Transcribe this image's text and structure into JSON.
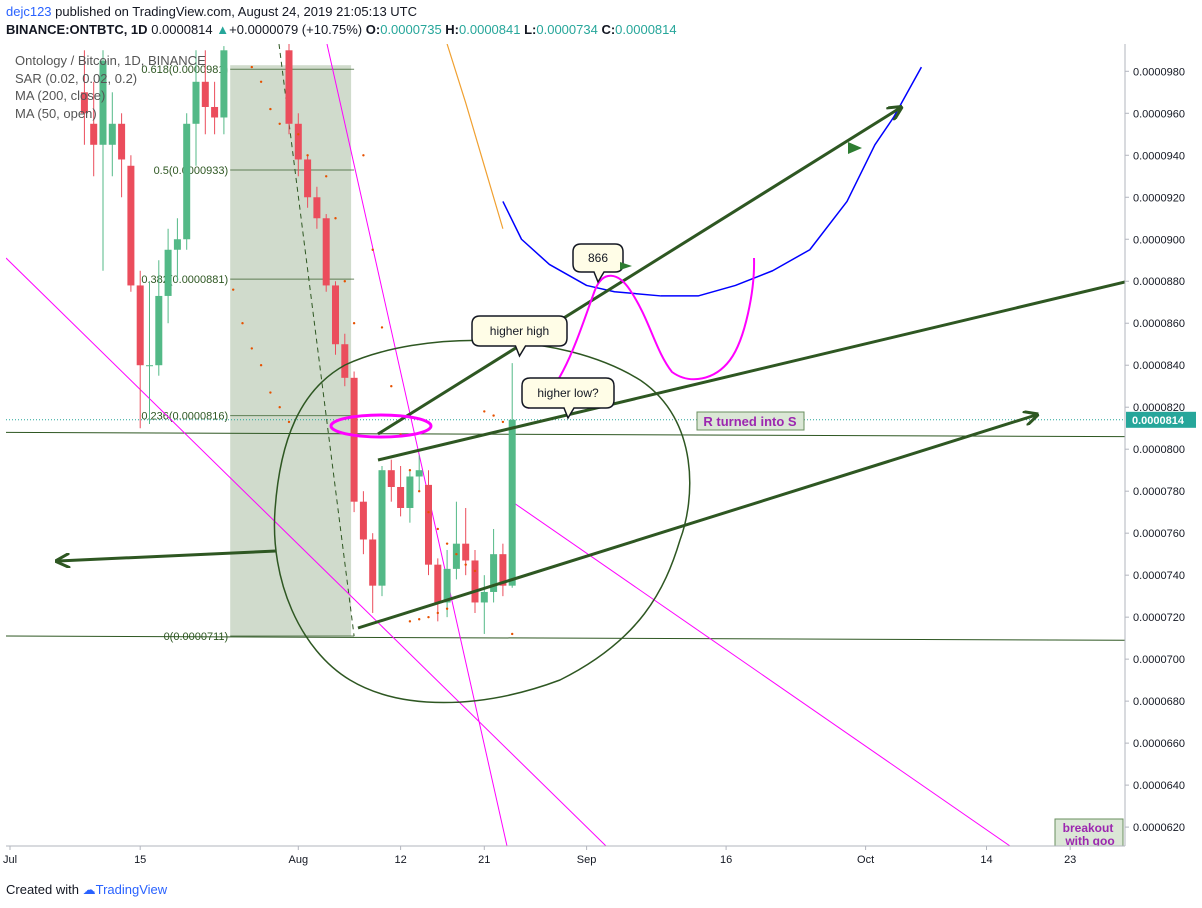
{
  "header": {
    "user": "dejc123",
    "published": "published on TradingView.com, August 24, 2019 21:05:13 UTC"
  },
  "symbol_bar": {
    "symbol": "BINANCE:ONTBTC, 1D",
    "last": "0.0000814",
    "change": "+0.0000079 (+10.75%)",
    "o_label": "O:",
    "o": "0.0000735",
    "h_label": "H:",
    "h": "0.0000841",
    "l_label": "L:",
    "l": "0.0000734",
    "c_label": "C:",
    "c": "0.0000814"
  },
  "legend": {
    "title": "Ontology / Bitcoin, 1D, BINANCE",
    "sar": "SAR (0.02, 0.02, 0.2)",
    "ma200": "MA (200, close)",
    "ma50": "MA (50, open)"
  },
  "footer": {
    "created": "Created with",
    "brand": "TradingView"
  },
  "colors": {
    "up": "#53b987",
    "down": "#eb4d5c",
    "fib_zone": "#c8d5c3",
    "drawing_green": "#2e5722",
    "magenta": "#ff00ff",
    "ma200": "#0000ff",
    "ma50": "#f0a030",
    "sar": "#e65100",
    "price_label": "#26a69a"
  },
  "chart_data": {
    "type": "candlestick",
    "ylim": [
      6.11e-05,
      9.93e-05
    ],
    "y_ticks": [
      "0.0000620",
      "0.0000640",
      "0.0000660",
      "0.0000680",
      "0.0000700",
      "0.0000720",
      "0.0000740",
      "0.0000760",
      "0.0000780",
      "0.0000800",
      "0.0000820",
      "0.0000840",
      "0.0000860",
      "0.0000880",
      "0.0000900",
      "0.0000920",
      "0.0000940",
      "0.0000960",
      "0.0000980"
    ],
    "x_ticks": [
      {
        "label": "Jul",
        "day": 0
      },
      {
        "label": "15",
        "day": 14
      },
      {
        "label": "Aug",
        "day": 31
      },
      {
        "label": "12",
        "day": 42
      },
      {
        "label": "21",
        "day": 51
      },
      {
        "label": "Sep",
        "day": 62
      },
      {
        "label": "16",
        "day": 77
      },
      {
        "label": "Oct",
        "day": 92
      },
      {
        "label": "14",
        "day": 105
      },
      {
        "label": "23",
        "day": 114
      }
    ],
    "current_price": "0.0000814",
    "candles": [
      {
        "day": 8,
        "o": 9.7e-05,
        "h": 9.9e-05,
        "l": 9.45e-05,
        "c": 9.6e-05
      },
      {
        "day": 9,
        "o": 9.55e-05,
        "h": 9.75e-05,
        "l": 9.3e-05,
        "c": 9.45e-05
      },
      {
        "day": 10,
        "o": 9.45e-05,
        "h": 9.9e-05,
        "l": 8.85e-05,
        "c": 9.85e-05
      },
      {
        "day": 11,
        "o": 9.45e-05,
        "h": 9.7e-05,
        "l": 9.3e-05,
        "c": 9.55e-05
      },
      {
        "day": 12,
        "o": 9.55e-05,
        "h": 9.6e-05,
        "l": 9.2e-05,
        "c": 9.38e-05
      },
      {
        "day": 13,
        "o": 9.35e-05,
        "h": 9.4e-05,
        "l": 8.75e-05,
        "c": 8.78e-05
      },
      {
        "day": 14,
        "o": 8.78e-05,
        "h": 8.85e-05,
        "l": 8.1e-05,
        "c": 8.4e-05
      },
      {
        "day": 15,
        "o": 8.4e-05,
        "h": 8.8e-05,
        "l": 8.12e-05,
        "c": 8.4e-05
      },
      {
        "day": 16,
        "o": 8.4e-05,
        "h": 8.9e-05,
        "l": 8.35e-05,
        "c": 8.73e-05
      },
      {
        "day": 17,
        "o": 8.73e-05,
        "h": 9.05e-05,
        "l": 8.6e-05,
        "c": 8.95e-05
      },
      {
        "day": 18,
        "o": 8.95e-05,
        "h": 9.1e-05,
        "l": 8.8e-05,
        "c": 9e-05
      },
      {
        "day": 19,
        "o": 9e-05,
        "h": 9.6e-05,
        "l": 8.95e-05,
        "c": 9.55e-05
      },
      {
        "day": 20,
        "o": 9.55e-05,
        "h": 9.9e-05,
        "l": 9.35e-05,
        "c": 9.75e-05
      },
      {
        "day": 21,
        "o": 9.75e-05,
        "h": 9.9e-05,
        "l": 9.5e-05,
        "c": 9.63e-05
      },
      {
        "day": 22,
        "o": 9.63e-05,
        "h": 9.75e-05,
        "l": 9.5e-05,
        "c": 9.58e-05
      },
      {
        "day": 23,
        "o": 9.58e-05,
        "h": 9.92e-05,
        "l": 9.5e-05,
        "c": 9.9e-05
      },
      {
        "day": 30,
        "o": 9.9e-05,
        "h": 9.93e-05,
        "l": 9.5e-05,
        "c": 9.55e-05
      },
      {
        "day": 31,
        "o": 9.55e-05,
        "h": 9.6e-05,
        "l": 9.3e-05,
        "c": 9.38e-05
      },
      {
        "day": 32,
        "o": 9.38e-05,
        "h": 9.4e-05,
        "l": 9.15e-05,
        "c": 9.2e-05
      },
      {
        "day": 33,
        "o": 9.2e-05,
        "h": 9.25e-05,
        "l": 9.05e-05,
        "c": 9.1e-05
      },
      {
        "day": 34,
        "o": 9.1e-05,
        "h": 9.12e-05,
        "l": 8.75e-05,
        "c": 8.78e-05
      },
      {
        "day": 35,
        "o": 8.78e-05,
        "h": 8.8e-05,
        "l": 8.45e-05,
        "c": 8.5e-05
      },
      {
        "day": 36,
        "o": 8.5e-05,
        "h": 8.55e-05,
        "l": 8.3e-05,
        "c": 8.34e-05
      },
      {
        "day": 37,
        "o": 8.34e-05,
        "h": 8.37e-05,
        "l": 7.7e-05,
        "c": 7.75e-05
      },
      {
        "day": 38,
        "o": 7.75e-05,
        "h": 7.8e-05,
        "l": 7.5e-05,
        "c": 7.57e-05
      },
      {
        "day": 39,
        "o": 7.57e-05,
        "h": 7.6e-05,
        "l": 7.22e-05,
        "c": 7.35e-05
      },
      {
        "day": 40,
        "o": 7.35e-05,
        "h": 7.92e-05,
        "l": 7.3e-05,
        "c": 7.9e-05
      },
      {
        "day": 41,
        "o": 7.9e-05,
        "h": 7.95e-05,
        "l": 7.75e-05,
        "c": 7.82e-05
      },
      {
        "day": 42,
        "o": 7.82e-05,
        "h": 7.92e-05,
        "l": 7.68e-05,
        "c": 7.72e-05
      },
      {
        "day": 43,
        "o": 7.72e-05,
        "h": 7.9e-05,
        "l": 7.65e-05,
        "c": 7.87e-05
      },
      {
        "day": 44,
        "o": 7.87e-05,
        "h": 7.97e-05,
        "l": 7.8e-05,
        "c": 7.9e-05
      },
      {
        "day": 45,
        "o": 7.83e-05,
        "h": 7.9e-05,
        "l": 7.4e-05,
        "c": 7.45e-05
      },
      {
        "day": 46,
        "o": 7.45e-05,
        "h": 7.48e-05,
        "l": 7.18e-05,
        "c": 7.27e-05
      },
      {
        "day": 47,
        "o": 7.27e-05,
        "h": 7.52e-05,
        "l": 7.2e-05,
        "c": 7.43e-05
      },
      {
        "day": 48,
        "o": 7.43e-05,
        "h": 7.75e-05,
        "l": 7.38e-05,
        "c": 7.55e-05
      },
      {
        "day": 49,
        "o": 7.55e-05,
        "h": 7.72e-05,
        "l": 7.4e-05,
        "c": 7.47e-05
      },
      {
        "day": 50,
        "o": 7.47e-05,
        "h": 7.52e-05,
        "l": 7.22e-05,
        "c": 7.27e-05
      },
      {
        "day": 51,
        "o": 7.27e-05,
        "h": 7.4e-05,
        "l": 7.12e-05,
        "c": 7.32e-05
      },
      {
        "day": 52,
        "o": 7.32e-05,
        "h": 7.62e-05,
        "l": 7.27e-05,
        "c": 7.5e-05
      },
      {
        "day": 53,
        "o": 7.5e-05,
        "h": 7.55e-05,
        "l": 7.3e-05,
        "c": 7.35e-05
      },
      {
        "day": 54,
        "o": 7.35e-05,
        "h": 8.41e-05,
        "l": 7.34e-05,
        "c": 8.14e-05
      }
    ],
    "sar_points": [
      {
        "day": 24,
        "v": 8.76e-05
      },
      {
        "day": 25,
        "v": 8.6e-05
      },
      {
        "day": 26,
        "v": 8.48e-05
      },
      {
        "day": 27,
        "v": 8.4e-05
      },
      {
        "day": 28,
        "v": 8.27e-05
      },
      {
        "day": 29,
        "v": 8.2e-05
      },
      {
        "day": 30,
        "v": 8.13e-05
      },
      {
        "day": 26,
        "v": 9.82e-05
      },
      {
        "day": 27,
        "v": 9.75e-05
      },
      {
        "day": 28,
        "v": 9.62e-05
      },
      {
        "day": 29,
        "v": 9.55e-05
      },
      {
        "day": 31,
        "v": 9.5e-05
      },
      {
        "day": 32,
        "v": 9.4e-05
      },
      {
        "day": 34,
        "v": 9.3e-05
      },
      {
        "day": 35,
        "v": 9.1e-05
      },
      {
        "day": 36,
        "v": 8.8e-05
      },
      {
        "day": 37,
        "v": 8.6e-05
      },
      {
        "day": 38,
        "v": 9.4e-05
      },
      {
        "day": 39,
        "v": 8.95e-05
      },
      {
        "day": 40,
        "v": 8.58e-05
      },
      {
        "day": 41,
        "v": 8.3e-05
      },
      {
        "day": 42,
        "v": 8.07e-05
      },
      {
        "day": 43,
        "v": 7.9e-05
      },
      {
        "day": 44,
        "v": 7.8e-05
      },
      {
        "day": 45,
        "v": 7.7e-05
      },
      {
        "day": 46,
        "v": 7.62e-05
      },
      {
        "day": 47,
        "v": 7.55e-05
      },
      {
        "day": 48,
        "v": 7.5e-05
      },
      {
        "day": 49,
        "v": 7.45e-05
      },
      {
        "day": 50,
        "v": 7.42e-05
      },
      {
        "day": 51,
        "v": 8.18e-05
      },
      {
        "day": 52,
        "v": 8.16e-05
      },
      {
        "day": 53,
        "v": 8.13e-05
      },
      {
        "day": 54,
        "v": 7.12e-05
      },
      {
        "day": 43,
        "v": 7.18e-05
      },
      {
        "day": 44,
        "v": 7.19e-05
      },
      {
        "day": 45,
        "v": 7.2e-05
      },
      {
        "day": 46,
        "v": 7.22e-05
      },
      {
        "day": 47,
        "v": 7.24e-05
      }
    ],
    "ma200": [
      {
        "day": 53,
        "v": 9.18e-05
      },
      {
        "day": 55,
        "v": 9e-05
      },
      {
        "day": 58,
        "v": 8.88e-05
      },
      {
        "day": 62,
        "v": 8.78e-05
      },
      {
        "day": 65,
        "v": 8.75e-05
      },
      {
        "day": 70,
        "v": 8.73e-05
      },
      {
        "day": 74,
        "v": 8.73e-05
      },
      {
        "day": 78,
        "v": 8.78e-05
      },
      {
        "day": 82,
        "v": 8.85e-05
      },
      {
        "day": 86,
        "v": 8.95e-05
      },
      {
        "day": 90,
        "v": 9.18e-05
      },
      {
        "day": 93,
        "v": 9.45e-05
      },
      {
        "day": 95,
        "v": 9.58e-05
      },
      {
        "day": 98,
        "v": 9.82e-05
      }
    ],
    "ma50": [
      {
        "day": 47,
        "v": 9.93e-05
      },
      {
        "day": 49,
        "v": 9.65e-05
      },
      {
        "day": 51,
        "v": 9.35e-05
      },
      {
        "day": 53,
        "v": 9.05e-05
      }
    ],
    "fib_levels": [
      {
        "label": "0.618(0.0000981)",
        "v": 9.81e-05
      },
      {
        "label": "0.5(0.0000933)",
        "v": 9.33e-05
      },
      {
        "label": "0.382(0.0000881)",
        "v": 8.81e-05
      },
      {
        "label": "0.236(0.0000816)",
        "v": 8.16e-05
      },
      {
        "label": "0(0.0000711)",
        "v": 7.11e-05
      }
    ],
    "annotations": {
      "higher_high": "higher high",
      "higher_low": "higher low?",
      "level_866": "866",
      "r_to_s": "R turned into S",
      "breakout_1": "breakout",
      "breakout_2": "with goo"
    }
  }
}
